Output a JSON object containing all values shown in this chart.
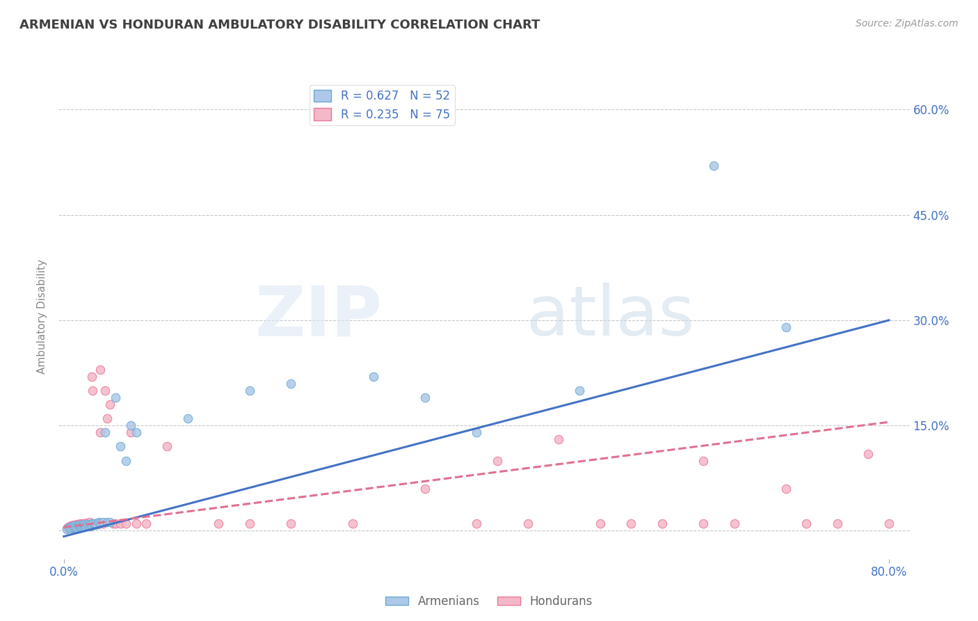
{
  "title": "ARMENIAN VS HONDURAN AMBULATORY DISABILITY CORRELATION CHART",
  "source": "Source: ZipAtlas.com",
  "ylabel": "Ambulatory Disability",
  "x_label_0": "0.0%",
  "x_label_80": "80.0%",
  "y_ticks": [
    0.0,
    0.15,
    0.3,
    0.45,
    0.6
  ],
  "y_tick_labels": [
    "",
    "15.0%",
    "30.0%",
    "45.0%",
    "60.0%"
  ],
  "xlim": [
    -0.005,
    0.82
  ],
  "ylim": [
    -0.04,
    0.65
  ],
  "armenian_R": 0.627,
  "armenian_N": 52,
  "honduran_R": 0.235,
  "honduran_N": 75,
  "legend_label_armenian": "Armenians",
  "legend_label_honduran": "Hondurans",
  "armenian_color": "#adc8e8",
  "armenian_edge_color": "#6aaad4",
  "armenian_line_color": "#4472c4",
  "honduran_color": "#f4b8c8",
  "honduran_edge_color": "#e87898",
  "honduran_line_color": "#e07090",
  "bg_color": "#ffffff",
  "grid_color": "#c8c8c8",
  "title_color": "#404040",
  "axis_label_color": "#4472c4",
  "arm_line_x0": 0.0,
  "arm_line_y0": -0.008,
  "arm_line_x1": 0.8,
  "arm_line_y1": 0.3,
  "hon_line_x0": 0.0,
  "hon_line_y0": 0.005,
  "hon_line_x1": 0.8,
  "hon_line_y1": 0.155,
  "armenian_x": [
    0.003,
    0.005,
    0.006,
    0.007,
    0.008,
    0.009,
    0.01,
    0.01,
    0.011,
    0.012,
    0.013,
    0.014,
    0.015,
    0.015,
    0.016,
    0.017,
    0.018,
    0.018,
    0.019,
    0.02,
    0.02,
    0.021,
    0.022,
    0.023,
    0.024,
    0.025,
    0.026,
    0.027,
    0.028,
    0.03,
    0.03,
    0.032,
    0.034,
    0.035,
    0.038,
    0.04,
    0.042,
    0.045,
    0.05,
    0.055,
    0.06,
    0.065,
    0.07,
    0.12,
    0.18,
    0.22,
    0.3,
    0.35,
    0.4,
    0.5,
    0.63,
    0.7
  ],
  "armenian_y": [
    0.002,
    0.004,
    0.005,
    0.003,
    0.006,
    0.004,
    0.005,
    0.007,
    0.005,
    0.006,
    0.004,
    0.007,
    0.005,
    0.008,
    0.006,
    0.005,
    0.008,
    0.006,
    0.007,
    0.005,
    0.009,
    0.007,
    0.006,
    0.009,
    0.007,
    0.006,
    0.009,
    0.007,
    0.01,
    0.008,
    0.01,
    0.009,
    0.012,
    0.011,
    0.012,
    0.14,
    0.012,
    0.012,
    0.19,
    0.12,
    0.1,
    0.15,
    0.14,
    0.16,
    0.2,
    0.21,
    0.22,
    0.19,
    0.14,
    0.2,
    0.52,
    0.29
  ],
  "honduran_x": [
    0.003,
    0.004,
    0.005,
    0.006,
    0.007,
    0.007,
    0.008,
    0.009,
    0.009,
    0.01,
    0.01,
    0.011,
    0.012,
    0.012,
    0.013,
    0.013,
    0.014,
    0.015,
    0.015,
    0.016,
    0.016,
    0.017,
    0.018,
    0.018,
    0.019,
    0.02,
    0.02,
    0.021,
    0.022,
    0.022,
    0.023,
    0.025,
    0.025,
    0.026,
    0.027,
    0.028,
    0.028,
    0.029,
    0.03,
    0.032,
    0.033,
    0.035,
    0.035,
    0.038,
    0.04,
    0.042,
    0.045,
    0.048,
    0.05,
    0.055,
    0.06,
    0.065,
    0.07,
    0.08,
    0.1,
    0.15,
    0.18,
    0.22,
    0.28,
    0.35,
    0.4,
    0.45,
    0.48,
    0.52,
    0.55,
    0.58,
    0.62,
    0.65,
    0.7,
    0.72,
    0.75,
    0.78,
    0.8,
    0.42,
    0.62
  ],
  "honduran_y": [
    0.003,
    0.005,
    0.004,
    0.006,
    0.004,
    0.007,
    0.005,
    0.004,
    0.008,
    0.005,
    0.007,
    0.005,
    0.006,
    0.009,
    0.005,
    0.008,
    0.007,
    0.005,
    0.009,
    0.006,
    0.01,
    0.007,
    0.006,
    0.01,
    0.007,
    0.006,
    0.01,
    0.007,
    0.006,
    0.011,
    0.008,
    0.006,
    0.012,
    0.008,
    0.22,
    0.2,
    0.01,
    0.009,
    0.01,
    0.01,
    0.009,
    0.23,
    0.14,
    0.01,
    0.2,
    0.16,
    0.18,
    0.01,
    0.01,
    0.01,
    0.01,
    0.14,
    0.01,
    0.01,
    0.12,
    0.01,
    0.01,
    0.01,
    0.01,
    0.06,
    0.01,
    0.01,
    0.13,
    0.01,
    0.01,
    0.01,
    0.01,
    0.01,
    0.06,
    0.01,
    0.01,
    0.11,
    0.01,
    0.1,
    0.1
  ]
}
